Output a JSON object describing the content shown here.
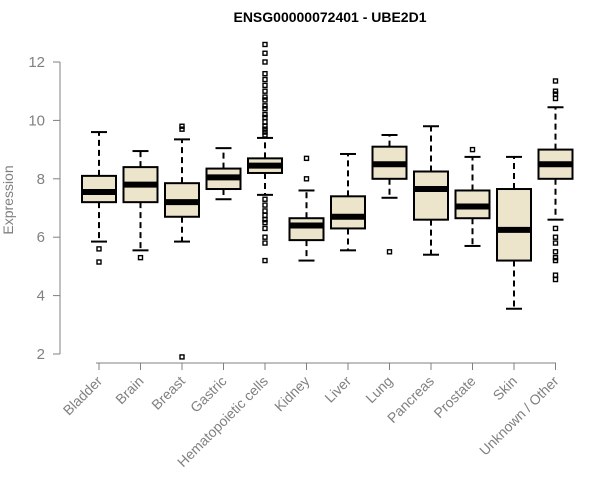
{
  "chart_data": {
    "type": "boxplot",
    "title": "ENSG00000072401 - UBE2D1",
    "xlabel": "",
    "ylabel": "Expression",
    "ylim": [
      1.7,
      12.7
    ],
    "yticks": [
      2,
      4,
      6,
      8,
      10,
      12
    ],
    "grid": false,
    "box_color": "#ede5cb",
    "categories": [
      "Bladder",
      "Brain",
      "Breast",
      "Gastric",
      "Hematopoietic cells",
      "Kidney",
      "Liver",
      "Lung",
      "Pancreas",
      "Prostate",
      "Skin",
      "Unknown / Other"
    ],
    "boxes": [
      {
        "name": "Bladder",
        "whisker_low": 5.85,
        "q1": 7.2,
        "median": 7.55,
        "q3": 8.1,
        "whisker_high": 9.6,
        "outliers": [
          5.6,
          5.15
        ]
      },
      {
        "name": "Brain",
        "whisker_low": 5.55,
        "q1": 7.2,
        "median": 7.8,
        "q3": 8.4,
        "whisker_high": 8.95,
        "outliers": [
          5.3
        ]
      },
      {
        "name": "Breast",
        "whisker_low": 5.85,
        "q1": 6.7,
        "median": 7.2,
        "q3": 7.85,
        "whisker_high": 9.35,
        "outliers": [
          9.7,
          9.8,
          1.9
        ]
      },
      {
        "name": "Gastric",
        "whisker_low": 7.3,
        "q1": 7.65,
        "median": 8.05,
        "q3": 8.35,
        "whisker_high": 9.05,
        "outliers": []
      },
      {
        "name": "Hematopoietic cells",
        "whisker_low": 7.45,
        "q1": 8.2,
        "median": 8.45,
        "q3": 8.7,
        "whisker_high": 9.4,
        "outliers": [
          12.6,
          12.3,
          12.0,
          11.6,
          11.4,
          11.2,
          11.0,
          10.8,
          10.7,
          10.5,
          10.4,
          10.2,
          10.1,
          9.95,
          9.8,
          9.7,
          9.6,
          9.5,
          7.3,
          7.1,
          6.9,
          6.75,
          6.6,
          6.5,
          6.3,
          6.0,
          5.8,
          5.2
        ]
      },
      {
        "name": "Kidney",
        "whisker_low": 5.2,
        "q1": 5.9,
        "median": 6.4,
        "q3": 6.65,
        "whisker_high": 7.6,
        "outliers": [
          8.7,
          8.0
        ]
      },
      {
        "name": "Liver",
        "whisker_low": 5.55,
        "q1": 6.3,
        "median": 6.7,
        "q3": 7.4,
        "whisker_high": 8.85,
        "outliers": []
      },
      {
        "name": "Lung",
        "whisker_low": 7.35,
        "q1": 8.0,
        "median": 8.5,
        "q3": 9.1,
        "whisker_high": 9.5,
        "outliers": [
          5.5
        ]
      },
      {
        "name": "Pancreas",
        "whisker_low": 5.4,
        "q1": 6.6,
        "median": 7.65,
        "q3": 8.25,
        "whisker_high": 9.8,
        "outliers": []
      },
      {
        "name": "Prostate",
        "whisker_low": 5.7,
        "q1": 6.65,
        "median": 7.05,
        "q3": 7.6,
        "whisker_high": 8.75,
        "outliers": [
          9.0
        ]
      },
      {
        "name": "Skin",
        "whisker_low": 3.55,
        "q1": 5.2,
        "median": 6.25,
        "q3": 7.65,
        "whisker_high": 8.75,
        "outliers": []
      },
      {
        "name": "Unknown / Other",
        "whisker_low": 6.6,
        "q1": 8.0,
        "median": 8.5,
        "q3": 9.0,
        "whisker_high": 10.45,
        "outliers": [
          11.35,
          11.0,
          10.9,
          10.75,
          6.3,
          6.0,
          5.8,
          5.5,
          5.3,
          5.2,
          4.7,
          4.55
        ]
      }
    ]
  }
}
